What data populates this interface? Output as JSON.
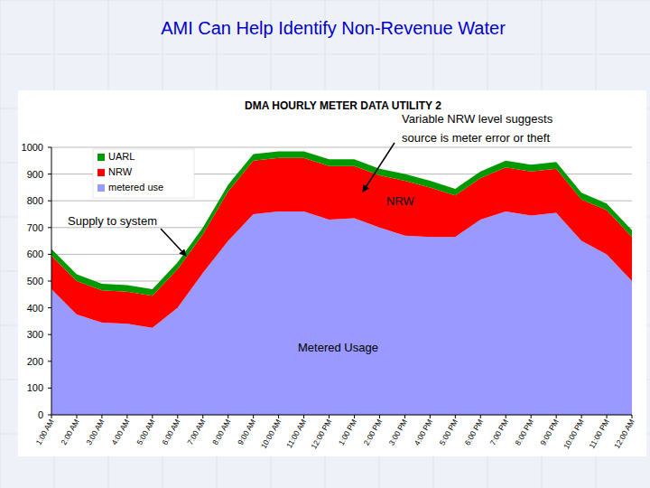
{
  "header": {
    "title": "AMI Can Help Identify Non-Revenue Water"
  },
  "chart_data": {
    "type": "area",
    "title": "DMA HOURLY METER DATA UTILITY 2",
    "stacked": true,
    "grid": true,
    "legend": "top-left",
    "categories": [
      "1:00 AM",
      "2:00 AM",
      "3:00 AM",
      "4:00 AM",
      "5:00 AM",
      "6:00 AM",
      "7:00 AM",
      "8:00 AM",
      "9:00 AM",
      "10:00 AM",
      "11:00 AM",
      "12:00 PM",
      "1:00 PM",
      "2:00 PM",
      "3:00 PM",
      "4:00 PM",
      "5:00 PM",
      "6:00 PM",
      "7:00 PM",
      "8:00 PM",
      "9:00 PM",
      "10:00 PM",
      "11:00 PM",
      "12:00 AM"
    ],
    "series": [
      {
        "name": "metered use",
        "color": "#9999ff",
        "values": [
          470,
          375,
          345,
          340,
          325,
          400,
          530,
          650,
          750,
          760,
          760,
          730,
          735,
          700,
          670,
          665,
          665,
          730,
          760,
          745,
          755,
          650,
          600,
          500
        ]
      },
      {
        "name": "NRW",
        "color": "#ff0000",
        "values": [
          125,
          125,
          120,
          120,
          120,
          145,
          145,
          185,
          200,
          200,
          200,
          200,
          195,
          195,
          205,
          185,
          155,
          155,
          165,
          165,
          165,
          155,
          165,
          165
        ]
      },
      {
        "name": "UARL",
        "color": "#009900",
        "values": [
          25,
          25,
          25,
          25,
          25,
          25,
          25,
          25,
          25,
          25,
          25,
          25,
          25,
          25,
          25,
          25,
          25,
          25,
          25,
          25,
          25,
          25,
          25,
          25
        ]
      }
    ],
    "ylim": [
      0,
      1000
    ],
    "yticks": [
      0,
      100,
      200,
      300,
      400,
      500,
      600,
      700,
      800,
      900,
      1000
    ],
    "annotations": [
      [
        "Variable NRW level suggests",
        "source is meter error or theft"
      ],
      [
        "NRW"
      ],
      [
        "Supply to system"
      ],
      [
        "Metered Usage"
      ]
    ]
  }
}
